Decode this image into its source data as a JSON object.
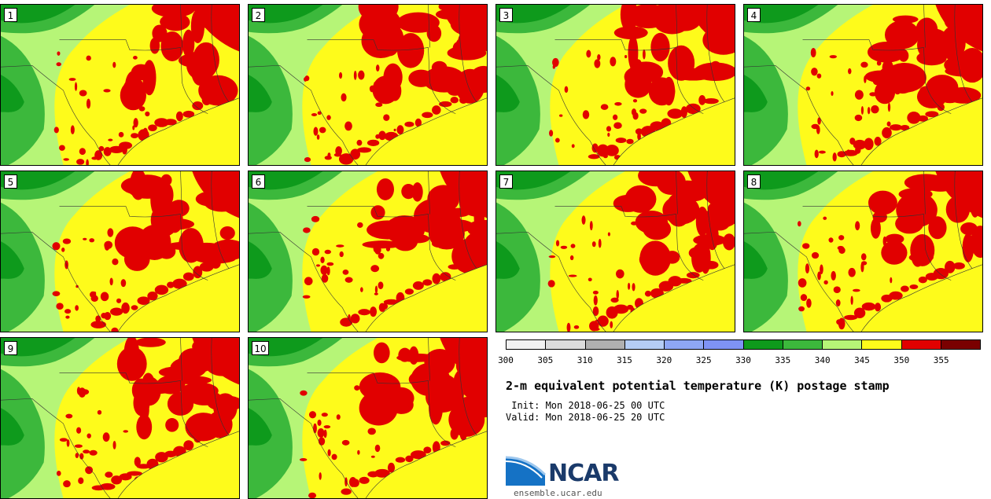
{
  "panels": [
    {
      "label": "1"
    },
    {
      "label": "2"
    },
    {
      "label": "3"
    },
    {
      "label": "4"
    },
    {
      "label": "5"
    },
    {
      "label": "6"
    },
    {
      "label": "7"
    },
    {
      "label": "8"
    },
    {
      "label": "9"
    },
    {
      "label": "10"
    }
  ],
  "colorbar": {
    "colors": [
      "#f2f2f2",
      "#dcdcdc",
      "#b0b0b0",
      "#b5cdf5",
      "#8ea7f5",
      "#7f93f5",
      "#0e9a1c",
      "#3cb83c",
      "#b6f577",
      "#fefb1b",
      "#e10000",
      "#7a0000"
    ],
    "ticks": [
      "300",
      "305",
      "310",
      "315",
      "320",
      "325",
      "330",
      "335",
      "340",
      "345",
      "350",
      "355"
    ]
  },
  "title": "2-m equivalent potential temperature (K) postage stamp",
  "init": " Init: Mon 2018-06-25 00 UTC",
  "valid": "Valid: Mon 2018-06-25 20 UTC",
  "logo": {
    "name": "NCAR",
    "url": "ensemble.ucar.edu"
  }
}
